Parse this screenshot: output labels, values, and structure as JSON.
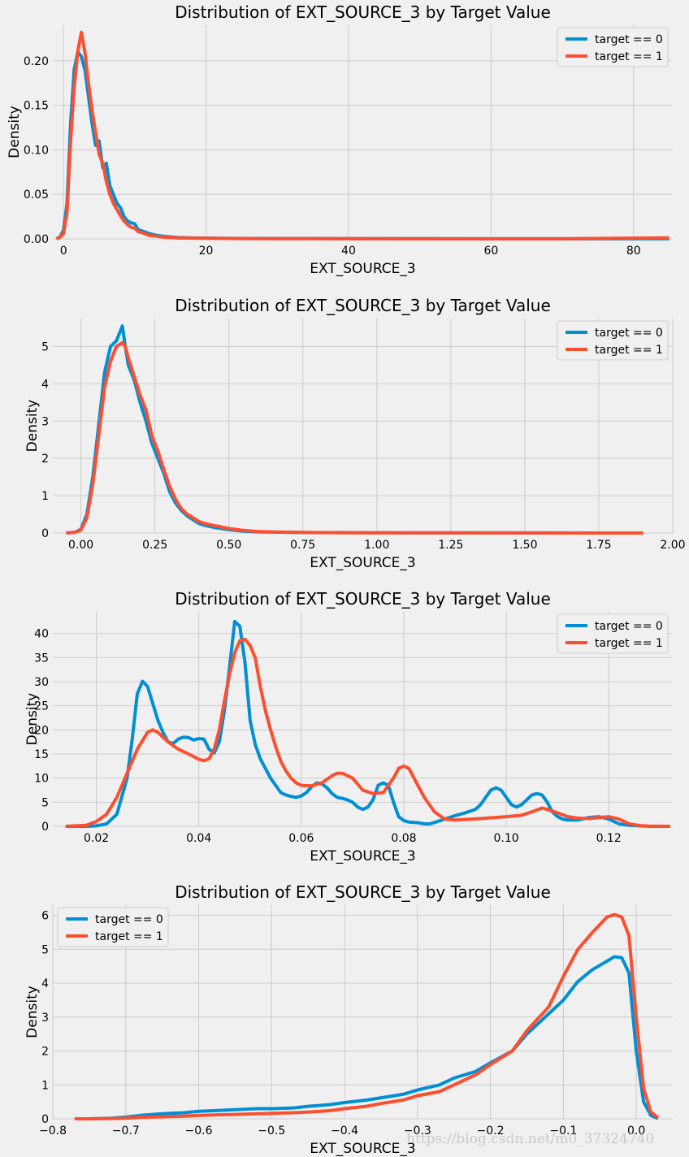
{
  "watermark": "https://blog.csdn.net/m0_37324740",
  "colors": {
    "target_0": "#008fd5",
    "target_1": "#fc4f30"
  },
  "chart_data": [
    {
      "type": "line",
      "title": "Distribution of EXT_SOURCE_3 by Target Value",
      "xlabel": "EXT_SOURCE_3",
      "ylabel": "Density",
      "xlim": [
        -1.5,
        85.5
      ],
      "ylim": [
        0,
        0.24
      ],
      "xticks": [
        0,
        20,
        40,
        60,
        80
      ],
      "xtick_labels": [
        "0",
        "20",
        "40",
        "60",
        "80"
      ],
      "yticks": [
        0,
        0.05,
        0.1,
        0.15,
        0.2
      ],
      "ytick_labels": [
        "0.00",
        "0.05",
        "0.10",
        "0.15",
        "0.20"
      ],
      "grid": true,
      "legend": "top-right",
      "series": [
        {
          "name": "target == 0",
          "color": "#008fd5",
          "x": [
            -1,
            -0.5,
            0,
            0.5,
            1,
            1.5,
            2,
            2.5,
            3,
            3.5,
            4,
            4.5,
            5,
            5.5,
            6,
            6.5,
            7,
            7.5,
            8,
            8.5,
            9,
            9.5,
            10,
            10.5,
            11,
            12,
            13,
            14,
            16,
            18,
            20,
            25,
            30,
            40,
            50,
            60,
            70,
            85
          ],
          "y": [
            0,
            0.002,
            0.01,
            0.04,
            0.13,
            0.19,
            0.21,
            0.205,
            0.19,
            0.16,
            0.13,
            0.105,
            0.11,
            0.08,
            0.085,
            0.06,
            0.05,
            0.04,
            0.035,
            0.025,
            0.02,
            0.018,
            0.017,
            0.01,
            0.009,
            0.006,
            0.004,
            0.003,
            0.0015,
            0.001,
            0.0008,
            0.0005,
            0.0004,
            0.0003,
            0.0002,
            0.0001,
            0.0001,
            0.0001
          ]
        },
        {
          "name": "target == 1",
          "color": "#fc4f30",
          "x": [
            -1,
            -0.5,
            0,
            0.5,
            1,
            1.5,
            2,
            2.5,
            3,
            3.5,
            4,
            4.5,
            5,
            5.5,
            6,
            6.5,
            7,
            7.5,
            8,
            8.5,
            9,
            9.5,
            10,
            10.5,
            11,
            12,
            13,
            14,
            16,
            18,
            20,
            25,
            30,
            40,
            50,
            60,
            70,
            85
          ],
          "y": [
            0,
            0.002,
            0.006,
            0.03,
            0.11,
            0.17,
            0.21,
            0.232,
            0.21,
            0.175,
            0.145,
            0.12,
            0.095,
            0.085,
            0.065,
            0.05,
            0.04,
            0.033,
            0.026,
            0.02,
            0.016,
            0.013,
            0.012,
            0.008,
            0.007,
            0.004,
            0.003,
            0.002,
            0.001,
            0.0008,
            0.0006,
            0.0004,
            0.0003,
            0.0002,
            0.0001,
            0.0001,
            0.0001,
            0.0012
          ]
        }
      ]
    },
    {
      "type": "line",
      "title": "Distribution of EXT_SOURCE_3 by Target Value",
      "xlabel": "EXT_SOURCE_3",
      "ylabel": "Density",
      "xlim": [
        -0.095,
        2.0
      ],
      "ylim": [
        0,
        5.75
      ],
      "xticks": [
        0,
        0.25,
        0.5,
        0.75,
        1.0,
        1.25,
        1.5,
        1.75,
        2.0
      ],
      "xtick_labels": [
        "0.00",
        "0.25",
        "0.50",
        "0.75",
        "1.00",
        "1.25",
        "1.50",
        "1.75",
        "2.00"
      ],
      "yticks": [
        0,
        1,
        2,
        3,
        4,
        5
      ],
      "ytick_labels": [
        "0",
        "1",
        "2",
        "3",
        "4",
        "5"
      ],
      "grid": true,
      "legend": "top-right",
      "series": [
        {
          "name": "target == 0",
          "color": "#008fd5",
          "x": [
            -0.05,
            -0.02,
            0,
            0.02,
            0.04,
            0.06,
            0.08,
            0.1,
            0.12,
            0.14,
            0.15,
            0.16,
            0.18,
            0.2,
            0.22,
            0.24,
            0.26,
            0.28,
            0.3,
            0.32,
            0.34,
            0.36,
            0.38,
            0.4,
            0.42,
            0.45,
            0.5,
            0.55,
            0.6,
            0.7,
            0.8,
            1.0,
            1.25,
            1.5,
            1.75,
            1.9
          ],
          "y": [
            0,
            0.02,
            0.1,
            0.5,
            1.5,
            2.9,
            4.3,
            5.0,
            5.15,
            5.55,
            5.0,
            4.5,
            4.1,
            3.5,
            3.0,
            2.4,
            2.0,
            1.6,
            1.1,
            0.8,
            0.6,
            0.45,
            0.35,
            0.25,
            0.2,
            0.15,
            0.09,
            0.05,
            0.03,
            0.015,
            0.01,
            0.005,
            0.003,
            0.002,
            0.001,
            0.001
          ]
        },
        {
          "name": "target == 1",
          "color": "#fc4f30",
          "x": [
            -0.05,
            -0.02,
            0,
            0.02,
            0.04,
            0.06,
            0.08,
            0.1,
            0.12,
            0.14,
            0.15,
            0.16,
            0.18,
            0.2,
            0.22,
            0.24,
            0.26,
            0.28,
            0.3,
            0.32,
            0.34,
            0.36,
            0.38,
            0.4,
            0.42,
            0.45,
            0.5,
            0.55,
            0.6,
            0.7,
            0.8,
            1.0,
            1.25,
            1.5,
            1.75,
            1.9
          ],
          "y": [
            0,
            0.02,
            0.08,
            0.4,
            1.3,
            2.6,
            3.9,
            4.6,
            5.0,
            5.1,
            5.0,
            4.7,
            4.2,
            3.7,
            3.3,
            2.6,
            2.2,
            1.7,
            1.25,
            0.9,
            0.65,
            0.5,
            0.4,
            0.3,
            0.25,
            0.2,
            0.12,
            0.07,
            0.04,
            0.02,
            0.01,
            0.006,
            0.004,
            0.002,
            0.001,
            0.001
          ]
        }
      ]
    },
    {
      "type": "line",
      "title": "Distribution of EXT_SOURCE_3 by Target Value",
      "xlabel": "EXT_SOURCE_3",
      "ylabel": "Density",
      "xlim": [
        0.0115,
        0.1325
      ],
      "ylim": [
        0,
        44.5
      ],
      "xticks": [
        0.02,
        0.04,
        0.06,
        0.08,
        0.1,
        0.12
      ],
      "xtick_labels": [
        "0.02",
        "0.04",
        "0.06",
        "0.08",
        "0.10",
        "0.12"
      ],
      "yticks": [
        0,
        5,
        10,
        15,
        20,
        25,
        30,
        35,
        40
      ],
      "ytick_labels": [
        "0",
        "5",
        "10",
        "15",
        "20",
        "25",
        "30",
        "35",
        "40"
      ],
      "grid": true,
      "legend": "top-right",
      "series": [
        {
          "name": "target == 0",
          "color": "#008fd5",
          "x": [
            0.014,
            0.018,
            0.02,
            0.022,
            0.024,
            0.026,
            0.027,
            0.028,
            0.029,
            0.03,
            0.031,
            0.032,
            0.033,
            0.034,
            0.035,
            0.036,
            0.037,
            0.038,
            0.039,
            0.04,
            0.041,
            0.042,
            0.043,
            0.044,
            0.045,
            0.046,
            0.047,
            0.048,
            0.049,
            0.05,
            0.051,
            0.052,
            0.053,
            0.054,
            0.055,
            0.056,
            0.057,
            0.058,
            0.059,
            0.06,
            0.061,
            0.062,
            0.063,
            0.064,
            0.065,
            0.066,
            0.067,
            0.068,
            0.069,
            0.07,
            0.071,
            0.072,
            0.073,
            0.074,
            0.075,
            0.076,
            0.077,
            0.078,
            0.079,
            0.08,
            0.081,
            0.082,
            0.083,
            0.084,
            0.085,
            0.086,
            0.088,
            0.09,
            0.092,
            0.094,
            0.095,
            0.096,
            0.097,
            0.098,
            0.099,
            0.1,
            0.101,
            0.102,
            0.103,
            0.104,
            0.105,
            0.106,
            0.107,
            0.108,
            0.109,
            0.11,
            0.111,
            0.112,
            0.114,
            0.116,
            0.118,
            0.12,
            0.122,
            0.124,
            0.126,
            0.128,
            0.132
          ],
          "y": [
            0,
            0,
            0.1,
            0.5,
            2.5,
            10,
            18,
            27.5,
            30.1,
            29,
            25.5,
            22,
            19.5,
            17.5,
            17.2,
            18.1,
            18.5,
            18.4,
            17.9,
            18.2,
            18.1,
            16,
            15.2,
            17.5,
            24,
            33,
            42.5,
            41.5,
            34,
            22,
            17,
            14,
            12,
            10,
            8.5,
            7,
            6.5,
            6.2,
            6,
            6.3,
            7,
            8.2,
            9,
            8.8,
            8,
            6.8,
            6,
            5.8,
            5.5,
            5,
            4,
            3.5,
            4,
            5.5,
            8.5,
            9,
            8.5,
            5,
            2,
            1.2,
            0.9,
            0.8,
            0.7,
            0.5,
            0.5,
            0.8,
            1.5,
            2.2,
            2.8,
            3.5,
            4.5,
            6,
            7.5,
            8,
            7.5,
            6,
            4.5,
            4,
            4.5,
            5.5,
            6.5,
            6.8,
            6.5,
            5,
            3,
            2,
            1.5,
            1.3,
            1.3,
            1.8,
            2,
            1.5,
            0.5,
            0.2,
            0.1,
            0,
            0
          ]
        },
        {
          "name": "target == 1",
          "color": "#fc4f30",
          "x": [
            0.014,
            0.018,
            0.02,
            0.022,
            0.024,
            0.026,
            0.028,
            0.03,
            0.031,
            0.032,
            0.034,
            0.036,
            0.038,
            0.04,
            0.041,
            0.042,
            0.043,
            0.044,
            0.045,
            0.046,
            0.047,
            0.048,
            0.049,
            0.05,
            0.051,
            0.052,
            0.053,
            0.054,
            0.055,
            0.056,
            0.057,
            0.058,
            0.059,
            0.06,
            0.062,
            0.064,
            0.066,
            0.067,
            0.068,
            0.07,
            0.072,
            0.074,
            0.076,
            0.078,
            0.079,
            0.08,
            0.081,
            0.082,
            0.084,
            0.086,
            0.088,
            0.09,
            0.095,
            0.1,
            0.103,
            0.105,
            0.107,
            0.108,
            0.11,
            0.112,
            0.114,
            0.116,
            0.118,
            0.12,
            0.122,
            0.124,
            0.126,
            0.128,
            0.132
          ],
          "y": [
            0,
            0.2,
            1,
            2.5,
            6,
            11,
            16,
            19.5,
            20,
            19.5,
            17.5,
            16,
            15,
            13.9,
            13.6,
            14,
            16,
            20,
            26,
            31.5,
            36,
            38.5,
            38.8,
            37.5,
            35,
            29,
            24,
            20,
            16.5,
            13.5,
            11.5,
            10,
            9,
            8.5,
            8.4,
            9,
            10.5,
            11,
            11,
            10,
            7.5,
            6.8,
            7,
            10,
            12,
            12.5,
            12,
            10,
            6,
            3,
            1.5,
            1.3,
            1.6,
            2,
            2.3,
            3,
            3.8,
            3.5,
            2.8,
            2,
            1.7,
            1.6,
            1.8,
            2,
            1.5,
            0.5,
            0.15,
            0.05,
            0
          ]
        }
      ]
    },
    {
      "type": "line",
      "title": "Distribution of EXT_SOURCE_3 by Target Value",
      "xlabel": "EXT_SOURCE_3",
      "ylabel": "Density",
      "xlim": [
        -0.8,
        0.05
      ],
      "ylim": [
        0,
        6.3
      ],
      "xticks": [
        -0.8,
        -0.7,
        -0.6,
        -0.5,
        -0.4,
        -0.3,
        -0.2,
        -0.1,
        0.0
      ],
      "xtick_labels": [
        "−0.8",
        "−0.7",
        "−0.6",
        "−0.5",
        "−0.4",
        "−0.3",
        "−0.2",
        "−0.1",
        "0.0"
      ],
      "yticks": [
        0,
        1,
        2,
        3,
        4,
        5,
        6
      ],
      "ytick_labels": [
        "0",
        "1",
        "2",
        "3",
        "4",
        "5",
        "6"
      ],
      "grid": true,
      "legend": "top-left",
      "series": [
        {
          "name": "target == 0",
          "color": "#008fd5",
          "x": [
            -0.77,
            -0.75,
            -0.72,
            -0.7,
            -0.68,
            -0.65,
            -0.62,
            -0.6,
            -0.57,
            -0.55,
            -0.52,
            -0.5,
            -0.47,
            -0.45,
            -0.42,
            -0.4,
            -0.37,
            -0.35,
            -0.32,
            -0.3,
            -0.27,
            -0.25,
            -0.22,
            -0.2,
            -0.17,
            -0.15,
            -0.12,
            -0.1,
            -0.08,
            -0.06,
            -0.04,
            -0.03,
            -0.02,
            -0.01,
            0.0,
            0.01,
            0.02,
            0.03
          ],
          "y": [
            0,
            0,
            0.02,
            0.05,
            0.1,
            0.15,
            0.18,
            0.22,
            0.25,
            0.27,
            0.3,
            0.3,
            0.32,
            0.37,
            0.42,
            0.48,
            0.55,
            0.62,
            0.72,
            0.85,
            1.0,
            1.2,
            1.4,
            1.65,
            2.0,
            2.5,
            3.1,
            3.5,
            4.05,
            4.4,
            4.65,
            4.78,
            4.75,
            4.3,
            2.0,
            0.5,
            0.1,
            0.01
          ]
        },
        {
          "name": "target == 1",
          "color": "#fc4f30",
          "x": [
            -0.77,
            -0.75,
            -0.72,
            -0.7,
            -0.68,
            -0.65,
            -0.62,
            -0.6,
            -0.57,
            -0.55,
            -0.52,
            -0.5,
            -0.47,
            -0.45,
            -0.42,
            -0.4,
            -0.37,
            -0.35,
            -0.32,
            -0.3,
            -0.27,
            -0.25,
            -0.22,
            -0.2,
            -0.17,
            -0.15,
            -0.12,
            -0.1,
            -0.08,
            -0.06,
            -0.04,
            -0.03,
            -0.02,
            -0.01,
            0.0,
            0.01,
            0.02,
            0.03
          ],
          "y": [
            0,
            0,
            0.01,
            0.02,
            0.04,
            0.06,
            0.08,
            0.1,
            0.12,
            0.13,
            0.15,
            0.16,
            0.18,
            0.2,
            0.24,
            0.3,
            0.37,
            0.45,
            0.55,
            0.68,
            0.8,
            1.0,
            1.3,
            1.6,
            2.0,
            2.6,
            3.3,
            4.2,
            5.0,
            5.5,
            5.95,
            6.02,
            5.95,
            5.4,
            3.0,
            0.9,
            0.2,
            0.03
          ]
        }
      ]
    }
  ]
}
